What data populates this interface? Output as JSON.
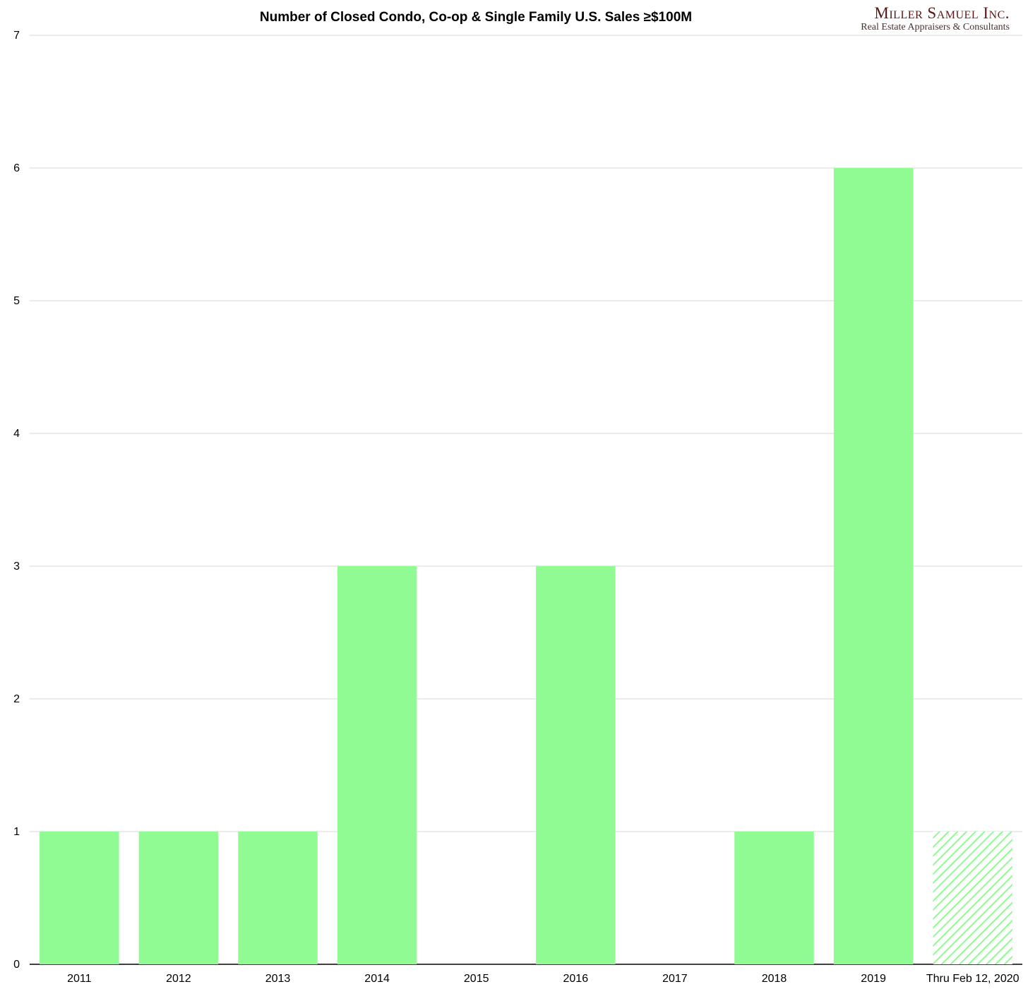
{
  "chart_data": {
    "type": "bar",
    "title": "Number of Closed Condo, Co-op & Single Family U.S. Sales ≥$100M",
    "xlabel": "",
    "ylabel": "",
    "categories": [
      "2011",
      "2012",
      "2013",
      "2014",
      "2015",
      "2016",
      "2017",
      "2018",
      "2019",
      "Thru Feb 12, 2020"
    ],
    "values": [
      1,
      1,
      1,
      3,
      0,
      3,
      0,
      1,
      6,
      1
    ],
    "partial_period": [
      false,
      false,
      false,
      false,
      false,
      false,
      false,
      false,
      false,
      true
    ],
    "ylim": [
      0,
      7
    ],
    "yticks": [
      0,
      1,
      2,
      3,
      4,
      5,
      6,
      7
    ],
    "grid": true,
    "legend": "none",
    "colors": {
      "bar": "#90fb92",
      "hatch": "#90fb92",
      "grid": "#d9d9d9",
      "axis": "#000000"
    }
  },
  "brand": {
    "name": "Miller Samuel Inc.",
    "tagline": "Real Estate Appraisers & Consultants"
  }
}
